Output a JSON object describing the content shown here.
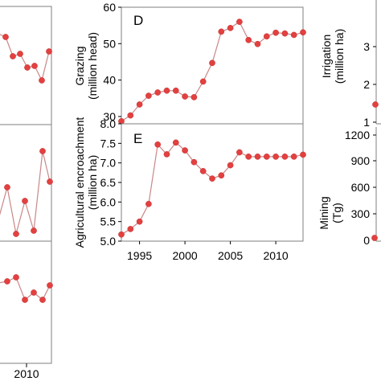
{
  "chart_data": [
    {
      "panel": "D",
      "type": "line",
      "ylabel_line1": "Grazing",
      "ylabel_line2": "(million head)",
      "ylim": [
        28,
        60
      ],
      "yticks": [
        "30",
        "40",
        "50",
        "60"
      ],
      "xlim": [
        1993,
        2013
      ],
      "x": [
        1993,
        1994,
        1995,
        1996,
        1997,
        1998,
        1999,
        2000,
        2001,
        2002,
        2003,
        2004,
        2005,
        2006,
        2007,
        2008,
        2009,
        2010,
        2011,
        2012,
        2013
      ],
      "values": [
        28.7,
        30.3,
        33.3,
        35.7,
        36.6,
        37.1,
        37.1,
        35.5,
        35.3,
        39.6,
        44.7,
        53.3,
        54.3,
        56.0,
        51.0,
        49.9,
        52.0,
        53.0,
        52.8,
        52.4,
        53.1
      ]
    },
    {
      "panel": "E",
      "type": "line",
      "ylabel_line1": "Agricultural encroachment",
      "ylabel_line2": "(million ha)",
      "ylim": [
        5.0,
        8.0
      ],
      "yticks": [
        "5.0",
        "5.5",
        "6.0",
        "6.5",
        "7.0",
        "7.5",
        "8.0"
      ],
      "xlim": [
        1993,
        2013
      ],
      "xticks": [
        "1995",
        "2000",
        "2005",
        "2010"
      ],
      "x": [
        1993,
        1994,
        1995,
        1996,
        1997,
        1998,
        1999,
        2000,
        2001,
        2002,
        2003,
        2004,
        2005,
        2006,
        2007,
        2008,
        2009,
        2010,
        2011,
        2012,
        2013
      ],
      "values": [
        5.17,
        5.31,
        5.5,
        5.95,
        7.47,
        7.22,
        7.52,
        7.32,
        7.02,
        6.79,
        6.6,
        6.68,
        6.94,
        7.27,
        7.16,
        7.16,
        7.16,
        7.16,
        7.16,
        7.16,
        7.21
      ]
    }
  ],
  "left_partial": {
    "xtick": "2010"
  },
  "right_partial": {
    "top_ylabel_line1": "Irrigation",
    "top_ylabel_line2": "(million ha)",
    "top_yticks": [
      "1",
      "2",
      "3"
    ],
    "bottom_ylabel_line1": "Mining",
    "bottom_ylabel_line2": "(Tg)",
    "bottom_yticks": [
      "0",
      "300",
      "600",
      "900",
      "1200"
    ]
  },
  "colors": {
    "marker": "#e34040",
    "line": "#c98787",
    "frame": "#7f7f7f"
  }
}
